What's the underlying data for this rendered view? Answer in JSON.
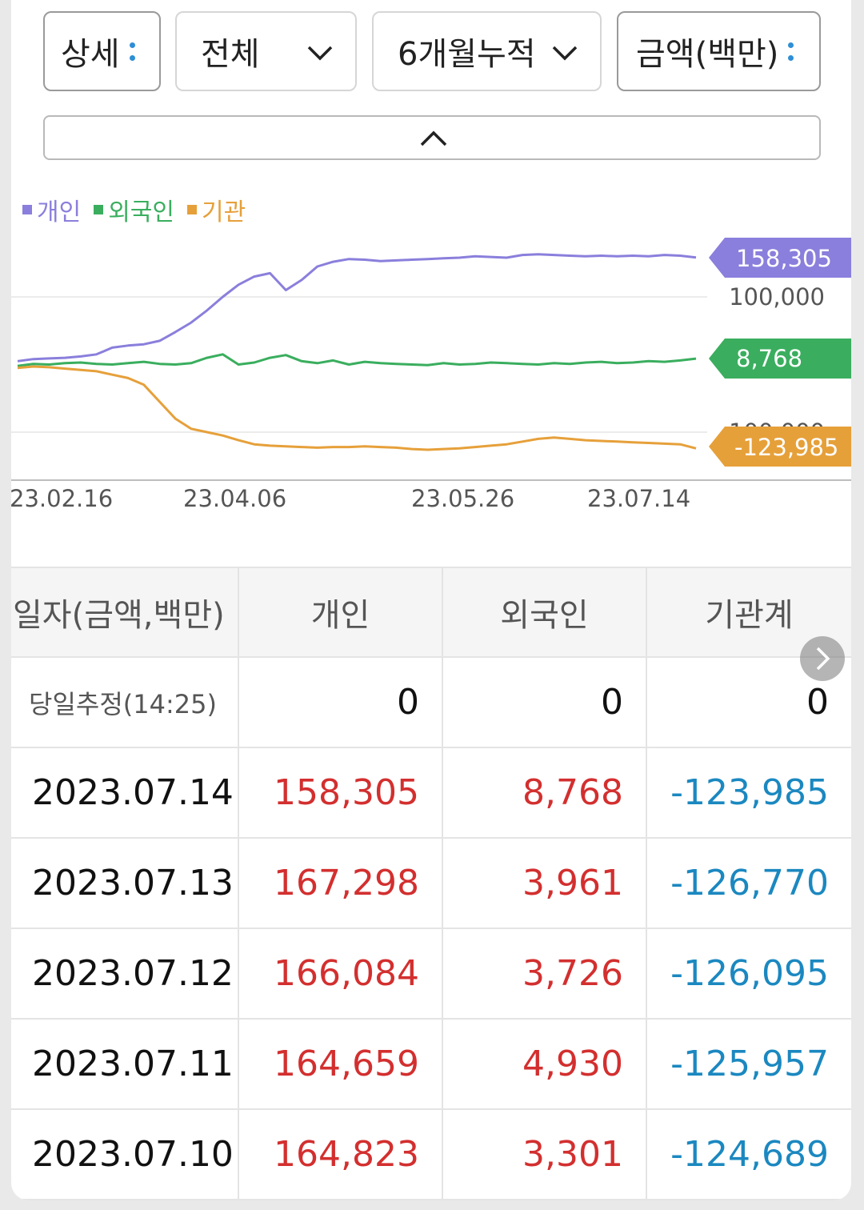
{
  "controls": {
    "detail": "상세",
    "scope": "전체",
    "period": "6개월누적",
    "unit": "금액(백만)"
  },
  "legend": [
    {
      "label": "개인",
      "color": "#8a7fdc"
    },
    {
      "label": "외국인",
      "color": "#3aae5e"
    },
    {
      "label": "기관",
      "color": "#e6a03a"
    }
  ],
  "chart_data": {
    "type": "line",
    "x_labels": [
      "23.02.16",
      "23.04.06",
      "23.05.26",
      "23.07.14"
    ],
    "y_grid_labels": [
      "100,000",
      "-100,000"
    ],
    "series": [
      {
        "name": "개인",
        "color": "#8a7fdc",
        "last_value": 158305,
        "last_label": "158,305",
        "values": [
          5000,
          8000,
          9000,
          10000,
          12000,
          15000,
          25000,
          28000,
          30000,
          35000,
          48000,
          62000,
          80000,
          100000,
          118000,
          130000,
          135000,
          110000,
          125000,
          145000,
          152000,
          156000,
          155000,
          153000,
          154000,
          155000,
          156000,
          157000,
          158000,
          160000,
          159000,
          158000,
          162000,
          163000,
          162000,
          161000,
          160000,
          161000,
          160000,
          161000,
          160000,
          162000,
          161000,
          158305
        ]
      },
      {
        "name": "외국인",
        "color": "#3aae5e",
        "last_value": 8768,
        "last_label": "8,768",
        "values": [
          -2000,
          1000,
          0,
          2000,
          3000,
          1000,
          0,
          2000,
          4000,
          1000,
          0,
          2000,
          10000,
          15000,
          0,
          3000,
          10000,
          14000,
          5000,
          2000,
          6000,
          0,
          4000,
          2000,
          1000,
          0,
          -1000,
          2000,
          0,
          1000,
          3000,
          2000,
          1000,
          0,
          2000,
          1000,
          3000,
          4000,
          2000,
          3000,
          5000,
          4000,
          6000,
          8768
        ]
      },
      {
        "name": "기관",
        "color": "#e6a03a",
        "last_value": -123985,
        "last_label": "-123,985",
        "values": [
          -5000,
          -3000,
          -4000,
          -6000,
          -8000,
          -10000,
          -15000,
          -20000,
          -30000,
          -55000,
          -80000,
          -95000,
          -100000,
          -105000,
          -112000,
          -118000,
          -120000,
          -121000,
          -122000,
          -123000,
          -122000,
          -122000,
          -121000,
          -122000,
          -123000,
          -125000,
          -126000,
          -125000,
          -124000,
          -122000,
          -120000,
          -118000,
          -114000,
          -110000,
          -108000,
          -110000,
          -112000,
          -113000,
          -114000,
          -115000,
          -116000,
          -117000,
          -118000,
          -123985
        ]
      }
    ]
  },
  "table": {
    "headers": [
      "일자(금액,백만)",
      "개인",
      "외국인",
      "기관계"
    ],
    "estimate_row": {
      "date": "당일추정(14:25)",
      "individual": "0",
      "foreign": "0",
      "institution": "0"
    },
    "rows": [
      {
        "date": "2023.07.14",
        "individual": "158,305",
        "foreign": "8,768",
        "institution": "-123,985"
      },
      {
        "date": "2023.07.13",
        "individual": "167,298",
        "foreign": "3,961",
        "institution": "-126,770"
      },
      {
        "date": "2023.07.12",
        "individual": "166,084",
        "foreign": "3,726",
        "institution": "-126,095"
      },
      {
        "date": "2023.07.11",
        "individual": "164,659",
        "foreign": "4,930",
        "institution": "-125,957"
      },
      {
        "date": "2023.07.10",
        "individual": "164,823",
        "foreign": "3,301",
        "institution": "-124,689"
      }
    ]
  }
}
